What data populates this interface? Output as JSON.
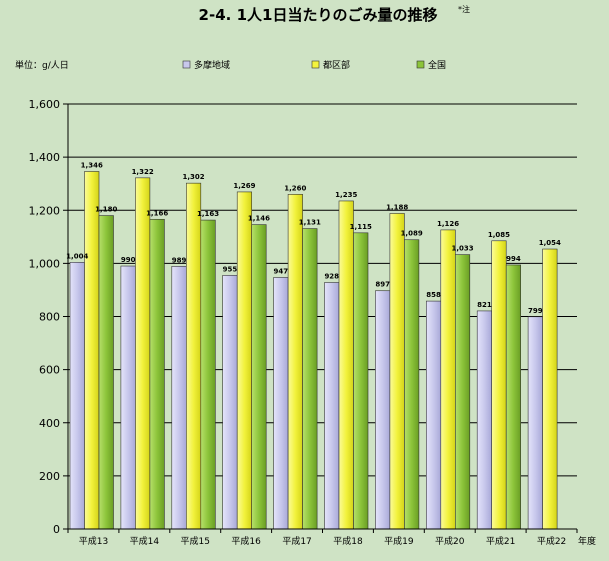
{
  "chart_data": {
    "type": "bar",
    "title": "2-4. 1人1日当たりのごみ量の推移",
    "title_note": "*注",
    "ylabel": "単位：g/人日",
    "xlabel": "年度",
    "ylim": [
      0,
      1600
    ],
    "yticks": [
      0,
      200,
      400,
      600,
      800,
      1000,
      1200,
      1400,
      1600
    ],
    "ytick_labels": [
      "0",
      "200",
      "400",
      "600",
      "800",
      "1,000",
      "1,200",
      "1,400",
      "1,600"
    ],
    "grid": true,
    "legend": "top",
    "categories": [
      "平成13",
      "平成14",
      "平成15",
      "平成16",
      "平成17",
      "平成18",
      "平成19",
      "平成20",
      "平成21",
      "平成22"
    ],
    "series": [
      {
        "name": "多摩地域",
        "color": "#c8c8ec",
        "values": [
          1004,
          990,
          989,
          955,
          947,
          928,
          897,
          858,
          821,
          799
        ],
        "labels": [
          "1,004",
          "990",
          "989",
          "955",
          "947",
          "928",
          "897",
          "858",
          "821",
          "799"
        ]
      },
      {
        "name": "都区部",
        "color": "#f4f43e",
        "values": [
          1346,
          1322,
          1302,
          1269,
          1260,
          1235,
          1188,
          1126,
          1085,
          1054
        ],
        "labels": [
          "1,346",
          "1,322",
          "1,302",
          "1,269",
          "1,260",
          "1,235",
          "1,188",
          "1,126",
          "1,085",
          "1,054"
        ]
      },
      {
        "name": "全国",
        "color": "#8cc43a",
        "values": [
          1180,
          1166,
          1163,
          1146,
          1131,
          1115,
          1089,
          1033,
          994,
          null
        ],
        "labels": [
          "1,180",
          "1,166",
          "1,163",
          "1,146",
          "1,131",
          "1,115",
          "1,089",
          "1,033",
          "994",
          null
        ]
      }
    ]
  }
}
